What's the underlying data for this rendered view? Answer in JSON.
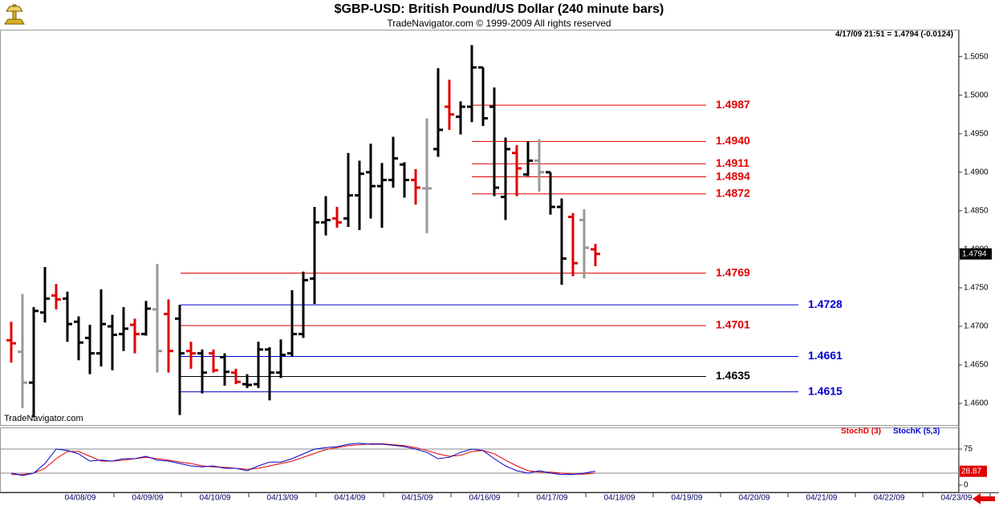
{
  "chart_data": [
    {
      "type": "ohlc",
      "title": "$GBP-USD:  British Pound/US Dollar  (240 minute bars)",
      "subtitle": "TradeNavigator.com © 1999-2009 All rights reserved",
      "info": "4/17/09 21:51 = 1.4794 (-0.0124)",
      "watermark": "TradeNavigator.com",
      "ylim": [
        1.4572,
        1.5085
      ],
      "yticks": [
        {
          "value": 1.46,
          "label": "1.4600"
        },
        {
          "value": 1.465,
          "label": "1.4650"
        },
        {
          "value": 1.47,
          "label": "1.4700"
        },
        {
          "value": 1.475,
          "label": "1.4750"
        },
        {
          "value": 1.48,
          "label": "1.4800"
        },
        {
          "value": 1.485,
          "label": "1.4850"
        },
        {
          "value": 1.49,
          "label": "1.4900"
        },
        {
          "value": 1.495,
          "label": "1.4950"
        },
        {
          "value": 1.5,
          "label": "1.5000"
        },
        {
          "value": 1.505,
          "label": "1.5050"
        }
      ],
      "open": [
        1.4682,
        1.4667,
        1.4627,
        1.4718,
        1.474,
        1.4736,
        1.4706,
        1.4685,
        1.4665,
        1.47,
        1.469,
        1.4702,
        1.469,
        1.4722,
        1.4716,
        1.471,
        1.4668,
        1.4665,
        1.4665,
        1.466,
        1.464,
        1.4625,
        1.4625,
        1.467,
        1.464,
        1.4665,
        1.469,
        1.4762,
        1.4835,
        1.484,
        1.484,
        1.487,
        1.49,
        1.4882,
        1.489,
        1.491,
        1.489,
        1.4879,
        1.493,
        1.4985,
        1.4972,
        1.4985,
        1.5036,
        1.4985,
        1.4868,
        1.4925,
        1.4897,
        1.4915,
        1.49,
        1.4855,
        1.4842,
        1.4838,
        1.48
      ],
      "high": [
        1.4706,
        1.4742,
        1.4725,
        1.4777,
        1.4755,
        1.4745,
        1.4713,
        1.4702,
        1.4748,
        1.4715,
        1.4725,
        1.471,
        1.4733,
        1.4781,
        1.4735,
        1.4728,
        1.468,
        1.467,
        1.467,
        1.4665,
        1.4645,
        1.4638,
        1.468,
        1.4673,
        1.4683,
        1.4747,
        1.4771,
        1.4855,
        1.4869,
        1.4855,
        1.4925,
        1.4915,
        1.4937,
        1.4912,
        1.4946,
        1.4913,
        1.4904,
        1.497,
        1.5035,
        1.502,
        1.4992,
        1.5065,
        1.5036,
        1.501,
        1.4945,
        1.4935,
        1.494,
        1.4943,
        1.49,
        1.4866,
        1.4847,
        1.4852,
        1.4807
      ],
      "low": [
        1.4653,
        1.4594,
        1.4582,
        1.4705,
        1.4722,
        1.468,
        1.4656,
        1.4638,
        1.4648,
        1.4643,
        1.4668,
        1.4665,
        1.4688,
        1.464,
        1.464,
        1.4585,
        1.4645,
        1.4613,
        1.464,
        1.4623,
        1.4625,
        1.462,
        1.462,
        1.4604,
        1.4633,
        1.4661,
        1.4685,
        1.4729,
        1.4818,
        1.4828,
        1.4829,
        1.4825,
        1.484,
        1.4828,
        1.488,
        1.4867,
        1.4858,
        1.4821,
        1.492,
        1.4955,
        1.4949,
        1.4965,
        1.496,
        1.4869,
        1.4838,
        1.4869,
        1.4895,
        1.4875,
        1.4845,
        1.4754,
        1.4765,
        1.4762,
        1.4778
      ],
      "close": [
        1.4678,
        1.4627,
        1.472,
        1.4736,
        1.4735,
        1.4703,
        1.4679,
        1.4665,
        1.4703,
        1.4689,
        1.4697,
        1.469,
        1.4723,
        1.4668,
        1.4668,
        1.4665,
        1.4665,
        1.464,
        1.4643,
        1.4641,
        1.4628,
        1.4624,
        1.467,
        1.464,
        1.4663,
        1.469,
        1.476,
        1.4835,
        1.4838,
        1.4835,
        1.487,
        1.4898,
        1.4882,
        1.489,
        1.4918,
        1.489,
        1.488,
        1.4879,
        1.4955,
        1.4975,
        1.4985,
        1.5036,
        1.497,
        1.488,
        1.493,
        1.4905,
        1.4915,
        1.49,
        1.4855,
        1.4788,
        1.4782,
        1.4802,
        1.4794
      ],
      "colors": [
        "#e00000",
        "#999999",
        "#000000",
        "#000000",
        "#e00000",
        "#000000",
        "#000000",
        "#000000",
        "#000000",
        "#000000",
        "#000000",
        "#e00000",
        "#000000",
        "#999999",
        "#e00000",
        "#000000",
        "#e00000",
        "#000000",
        "#e00000",
        "#000000",
        "#e00000",
        "#000000",
        "#000000",
        "#000000",
        "#000000",
        "#000000",
        "#000000",
        "#000000",
        "#000000",
        "#e00000",
        "#000000",
        "#000000",
        "#000000",
        "#000000",
        "#000000",
        "#000000",
        "#e00000",
        "#999999",
        "#000000",
        "#e00000",
        "#000000",
        "#000000",
        "#000000",
        "#000000",
        "#000000",
        "#e00000",
        "#000000",
        "#999999",
        "#000000",
        "#000000",
        "#e00000",
        "#999999",
        "#e00000"
      ],
      "levels": [
        {
          "value": 1.4987,
          "label": "1.4987",
          "color": "#e00000"
        },
        {
          "value": 1.494,
          "label": "1.4940",
          "color": "#e00000"
        },
        {
          "value": 1.4911,
          "label": "1.4911",
          "color": "#e00000"
        },
        {
          "value": 1.4894,
          "label": "1.4894",
          "color": "#e00000"
        },
        {
          "value": 1.4872,
          "label": "1.4872",
          "color": "#e00000"
        },
        {
          "value": 1.4769,
          "label": "1.4769",
          "color": "#e00000"
        },
        {
          "value": 1.4728,
          "label": "1.4728",
          "color": "#0000cc"
        },
        {
          "value": 1.4701,
          "label": "1.4701",
          "color": "#e00000"
        },
        {
          "value": 1.4661,
          "label": "1.4661",
          "color": "#0000cc"
        },
        {
          "value": 1.4635,
          "label": "1.4635",
          "color": "#000000"
        },
        {
          "value": 1.4615,
          "label": "1.4615",
          "color": "#0000cc"
        }
      ]
    },
    {
      "type": "line",
      "ylim": [
        0,
        120
      ],
      "yticks": [
        0,
        75
      ],
      "reference_lines": [
        75,
        25
      ],
      "date_labels": [
        "04/08/09",
        "04/09/09",
        "04/10/09",
        "04/13/09",
        "04/14/09",
        "04/15/09",
        "04/16/09",
        "04/17/09",
        "04/18/09",
        "04/19/09",
        "04/20/09",
        "04/21/09",
        "04/22/09",
        "04/23/09"
      ],
      "series": [
        {
          "name": "StochD (3)",
          "color": "#e00000",
          "values": [
            22,
            22,
            25,
            35,
            55,
            70,
            70,
            60,
            50,
            50,
            52,
            55,
            58,
            55,
            52,
            48,
            45,
            40,
            38,
            37,
            35,
            33,
            35,
            40,
            45,
            50,
            58,
            66,
            74,
            78,
            82,
            84,
            86,
            86,
            84,
            82,
            78,
            72,
            65,
            60,
            62,
            70,
            72,
            65,
            52,
            40,
            30,
            27,
            27,
            25,
            23,
            23,
            25
          ]
        },
        {
          "name": "StochK (5,3)",
          "color": "#0000cc",
          "values": [
            25,
            20,
            25,
            45,
            75,
            72,
            65,
            50,
            52,
            50,
            55,
            55,
            60,
            52,
            50,
            45,
            40,
            38,
            40,
            35,
            35,
            30,
            40,
            48,
            48,
            55,
            65,
            75,
            78,
            80,
            85,
            87,
            85,
            85,
            83,
            80,
            75,
            68,
            55,
            58,
            68,
            75,
            72,
            55,
            40,
            30,
            25,
            30,
            25,
            22,
            22,
            25,
            28.87
          ]
        }
      ]
    }
  ]
}
